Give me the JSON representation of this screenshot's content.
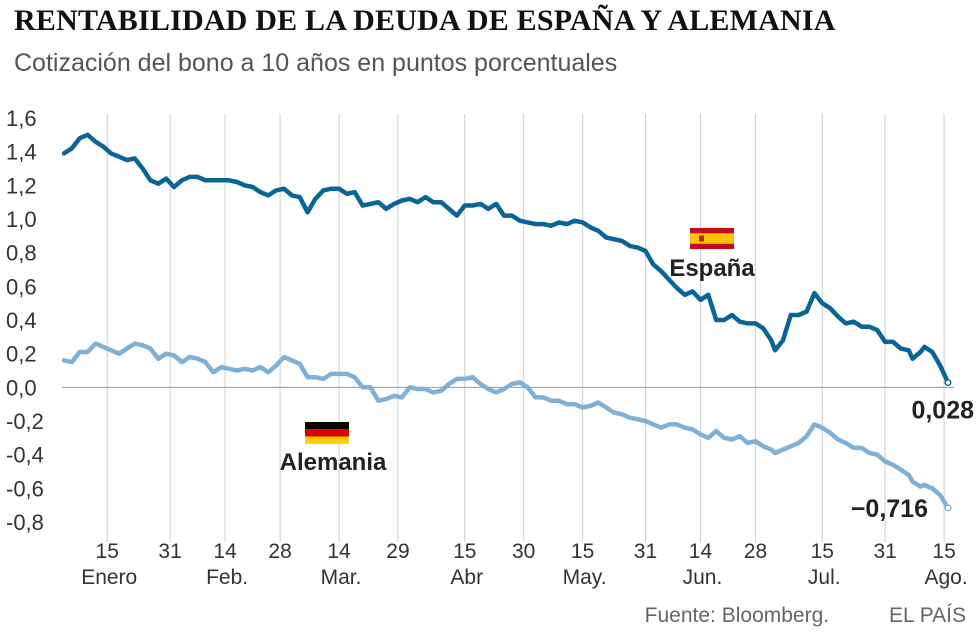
{
  "header": {
    "title": "RENTABILIDAD DE LA DEUDA DE ESPAÑA Y ALEMANIA",
    "subtitle": "Cotización del bono a 10 años en puntos porcentuales"
  },
  "footer": {
    "source": "Fuente: Bloomberg.",
    "publisher": "EL PAÍS"
  },
  "colors": {
    "spain": "#0a6496",
    "germany": "#7fb0d8",
    "grid": "#cfcfcf",
    "zero_line": "#999999",
    "text": "#333333"
  },
  "chart_data": {
    "type": "line",
    "title": "RENTABILIDAD DE LA DEUDA DE ESPAÑA Y ALEMANIA",
    "subtitle": "Cotización del bono a 10 años en puntos porcentuales",
    "ylim": [
      -0.8,
      1.6
    ],
    "yticks": [
      1.6,
      1.4,
      1.2,
      1.0,
      0.8,
      0.6,
      0.4,
      0.2,
      0.0,
      -0.2,
      -0.4,
      -0.6,
      -0.8
    ],
    "ytick_labels": [
      "1,6",
      "1,4",
      "1,2",
      "1,0",
      "0,8",
      "0,6",
      "0,4",
      "0,2",
      "0,0",
      "-0,2",
      "-0,4",
      "-0,6",
      "-0,8"
    ],
    "xlim": [
      "2016-01-04",
      "2016-08-16"
    ],
    "xticks": [
      {
        "date": "2016-01-15",
        "label": "15"
      },
      {
        "date": "2016-01-31",
        "label": "31"
      },
      {
        "date": "2016-02-14",
        "label": "14"
      },
      {
        "date": "2016-02-28",
        "label": "28"
      },
      {
        "date": "2016-03-14",
        "label": "14"
      },
      {
        "date": "2016-03-29",
        "label": "29"
      },
      {
        "date": "2016-04-15",
        "label": "15"
      },
      {
        "date": "2016-04-30",
        "label": "30"
      },
      {
        "date": "2016-05-15",
        "label": "15"
      },
      {
        "date": "2016-05-31",
        "label": "31"
      },
      {
        "date": "2016-06-14",
        "label": "14"
      },
      {
        "date": "2016-06-28",
        "label": "28"
      },
      {
        "date": "2016-07-15",
        "label": "15"
      },
      {
        "date": "2016-07-31",
        "label": "31"
      },
      {
        "date": "2016-08-15",
        "label": "15"
      }
    ],
    "months": [
      {
        "date": "2016-01-15",
        "label": "Enero"
      },
      {
        "date": "2016-02-14",
        "label": "Feb."
      },
      {
        "date": "2016-03-14",
        "label": "Mar."
      },
      {
        "date": "2016-04-15",
        "label": "Abr"
      },
      {
        "date": "2016-05-15",
        "label": "May."
      },
      {
        "date": "2016-06-14",
        "label": "Jun."
      },
      {
        "date": "2016-07-15",
        "label": "Jul."
      },
      {
        "date": "2016-08-15",
        "label": "Ago."
      }
    ],
    "grid": {
      "vertical": true,
      "horizontal": false
    },
    "series": [
      {
        "name": "España",
        "end_label": "0,028",
        "points": [
          [
            "2016-01-04",
            1.39
          ],
          [
            "2016-01-06",
            1.42
          ],
          [
            "2016-01-08",
            1.48
          ],
          [
            "2016-01-10",
            1.5
          ],
          [
            "2016-01-12",
            1.46
          ],
          [
            "2016-01-14",
            1.43
          ],
          [
            "2016-01-16",
            1.39
          ],
          [
            "2016-01-18",
            1.37
          ],
          [
            "2016-01-20",
            1.35
          ],
          [
            "2016-01-22",
            1.36
          ],
          [
            "2016-01-24",
            1.3
          ],
          [
            "2016-01-26",
            1.23
          ],
          [
            "2016-01-28",
            1.21
          ],
          [
            "2016-01-30",
            1.24
          ],
          [
            "2016-02-01",
            1.19
          ],
          [
            "2016-02-03",
            1.23
          ],
          [
            "2016-02-05",
            1.25
          ],
          [
            "2016-02-07",
            1.25
          ],
          [
            "2016-02-09",
            1.23
          ],
          [
            "2016-02-11",
            1.23
          ],
          [
            "2016-02-13",
            1.23
          ],
          [
            "2016-02-15",
            1.23
          ],
          [
            "2016-02-17",
            1.22
          ],
          [
            "2016-02-19",
            1.2
          ],
          [
            "2016-02-21",
            1.19
          ],
          [
            "2016-02-23",
            1.16
          ],
          [
            "2016-02-25",
            1.14
          ],
          [
            "2016-02-27",
            1.17
          ],
          [
            "2016-02-29",
            1.18
          ],
          [
            "2016-03-02",
            1.14
          ],
          [
            "2016-03-04",
            1.13
          ],
          [
            "2016-03-06",
            1.04
          ],
          [
            "2016-03-08",
            1.12
          ],
          [
            "2016-03-10",
            1.17
          ],
          [
            "2016-03-12",
            1.18
          ],
          [
            "2016-03-14",
            1.18
          ],
          [
            "2016-03-16",
            1.15
          ],
          [
            "2016-03-18",
            1.16
          ],
          [
            "2016-03-20",
            1.08
          ],
          [
            "2016-03-22",
            1.09
          ],
          [
            "2016-03-24",
            1.1
          ],
          [
            "2016-03-26",
            1.06
          ],
          [
            "2016-03-28",
            1.09
          ],
          [
            "2016-03-30",
            1.11
          ],
          [
            "2016-04-01",
            1.12
          ],
          [
            "2016-04-03",
            1.1
          ],
          [
            "2016-04-05",
            1.13
          ],
          [
            "2016-04-07",
            1.1
          ],
          [
            "2016-04-09",
            1.1
          ],
          [
            "2016-04-11",
            1.06
          ],
          [
            "2016-04-13",
            1.02
          ],
          [
            "2016-04-15",
            1.08
          ],
          [
            "2016-04-17",
            1.08
          ],
          [
            "2016-04-19",
            1.09
          ],
          [
            "2016-04-21",
            1.06
          ],
          [
            "2016-04-23",
            1.09
          ],
          [
            "2016-04-25",
            1.02
          ],
          [
            "2016-04-27",
            1.02
          ],
          [
            "2016-04-29",
            0.99
          ],
          [
            "2016-05-01",
            0.98
          ],
          [
            "2016-05-03",
            0.97
          ],
          [
            "2016-05-05",
            0.97
          ],
          [
            "2016-05-07",
            0.96
          ],
          [
            "2016-05-09",
            0.98
          ],
          [
            "2016-05-11",
            0.97
          ],
          [
            "2016-05-13",
            0.99
          ],
          [
            "2016-05-15",
            0.98
          ],
          [
            "2016-05-17",
            0.95
          ],
          [
            "2016-05-19",
            0.93
          ],
          [
            "2016-05-21",
            0.89
          ],
          [
            "2016-05-23",
            0.88
          ],
          [
            "2016-05-25",
            0.87
          ],
          [
            "2016-05-27",
            0.84
          ],
          [
            "2016-05-29",
            0.83
          ],
          [
            "2016-05-31",
            0.81
          ],
          [
            "2016-06-02",
            0.73
          ],
          [
            "2016-06-04",
            0.69
          ],
          [
            "2016-06-06",
            0.64
          ],
          [
            "2016-06-08",
            0.59
          ],
          [
            "2016-06-10",
            0.55
          ],
          [
            "2016-06-12",
            0.57
          ],
          [
            "2016-06-14",
            0.52
          ],
          [
            "2016-06-16",
            0.55
          ],
          [
            "2016-06-18",
            0.4
          ],
          [
            "2016-06-20",
            0.4
          ],
          [
            "2016-06-22",
            0.43
          ],
          [
            "2016-06-24",
            0.39
          ],
          [
            "2016-06-26",
            0.38
          ],
          [
            "2016-06-28",
            0.38
          ],
          [
            "2016-06-30",
            0.35
          ],
          [
            "2016-07-02",
            0.28
          ],
          [
            "2016-07-03",
            0.22
          ],
          [
            "2016-07-05",
            0.28
          ],
          [
            "2016-07-07",
            0.43
          ],
          [
            "2016-07-09",
            0.43
          ],
          [
            "2016-07-11",
            0.45
          ],
          [
            "2016-07-13",
            0.56
          ],
          [
            "2016-07-15",
            0.5
          ],
          [
            "2016-07-17",
            0.47
          ],
          [
            "2016-07-19",
            0.42
          ],
          [
            "2016-07-21",
            0.38
          ],
          [
            "2016-07-23",
            0.39
          ],
          [
            "2016-07-25",
            0.36
          ],
          [
            "2016-07-27",
            0.36
          ],
          [
            "2016-07-29",
            0.34
          ],
          [
            "2016-07-31",
            0.27
          ],
          [
            "2016-08-02",
            0.27
          ],
          [
            "2016-08-04",
            0.23
          ],
          [
            "2016-08-06",
            0.22
          ],
          [
            "2016-08-07",
            0.17
          ],
          [
            "2016-08-09",
            0.21
          ],
          [
            "2016-08-10",
            0.24
          ],
          [
            "2016-08-12",
            0.21
          ],
          [
            "2016-08-14",
            0.13
          ],
          [
            "2016-08-16",
            0.028
          ]
        ]
      },
      {
        "name": "Alemania",
        "end_label": "−0,716",
        "points": [
          [
            "2016-01-04",
            0.16
          ],
          [
            "2016-01-06",
            0.15
          ],
          [
            "2016-01-08",
            0.21
          ],
          [
            "2016-01-10",
            0.21
          ],
          [
            "2016-01-12",
            0.26
          ],
          [
            "2016-01-14",
            0.24
          ],
          [
            "2016-01-16",
            0.22
          ],
          [
            "2016-01-18",
            0.2
          ],
          [
            "2016-01-20",
            0.23
          ],
          [
            "2016-01-22",
            0.26
          ],
          [
            "2016-01-24",
            0.25
          ],
          [
            "2016-01-26",
            0.23
          ],
          [
            "2016-01-28",
            0.17
          ],
          [
            "2016-01-30",
            0.2
          ],
          [
            "2016-02-01",
            0.19
          ],
          [
            "2016-02-03",
            0.15
          ],
          [
            "2016-02-05",
            0.18
          ],
          [
            "2016-02-07",
            0.17
          ],
          [
            "2016-02-09",
            0.15
          ],
          [
            "2016-02-11",
            0.09
          ],
          [
            "2016-02-13",
            0.12
          ],
          [
            "2016-02-15",
            0.11
          ],
          [
            "2016-02-17",
            0.1
          ],
          [
            "2016-02-19",
            0.11
          ],
          [
            "2016-02-21",
            0.1
          ],
          [
            "2016-02-23",
            0.12
          ],
          [
            "2016-02-25",
            0.09
          ],
          [
            "2016-02-27",
            0.13
          ],
          [
            "2016-02-29",
            0.18
          ],
          [
            "2016-03-02",
            0.16
          ],
          [
            "2016-03-04",
            0.14
          ],
          [
            "2016-03-06",
            0.06
          ],
          [
            "2016-03-08",
            0.06
          ],
          [
            "2016-03-10",
            0.05
          ],
          [
            "2016-03-12",
            0.08
          ],
          [
            "2016-03-14",
            0.08
          ],
          [
            "2016-03-16",
            0.08
          ],
          [
            "2016-03-18",
            0.06
          ],
          [
            "2016-03-20",
            0.0
          ],
          [
            "2016-03-22",
            0.0
          ],
          [
            "2016-03-24",
            -0.08
          ],
          [
            "2016-03-26",
            -0.07
          ],
          [
            "2016-03-28",
            -0.05
          ],
          [
            "2016-03-30",
            -0.06
          ],
          [
            "2016-04-01",
            0.0
          ],
          [
            "2016-04-03",
            -0.01
          ],
          [
            "2016-04-05",
            -0.01
          ],
          [
            "2016-04-07",
            -0.03
          ],
          [
            "2016-04-09",
            -0.02
          ],
          [
            "2016-04-11",
            0.02
          ],
          [
            "2016-04-13",
            0.05
          ],
          [
            "2016-04-15",
            0.05
          ],
          [
            "2016-04-17",
            0.06
          ],
          [
            "2016-04-19",
            0.02
          ],
          [
            "2016-04-21",
            -0.01
          ],
          [
            "2016-04-23",
            -0.03
          ],
          [
            "2016-04-25",
            -0.01
          ],
          [
            "2016-04-27",
            0.02
          ],
          [
            "2016-04-29",
            0.03
          ],
          [
            "2016-05-01",
            0.0
          ],
          [
            "2016-05-03",
            -0.06
          ],
          [
            "2016-05-05",
            -0.06
          ],
          [
            "2016-05-07",
            -0.08
          ],
          [
            "2016-05-09",
            -0.08
          ],
          [
            "2016-05-11",
            -0.1
          ],
          [
            "2016-05-13",
            -0.1
          ],
          [
            "2016-05-15",
            -0.12
          ],
          [
            "2016-05-17",
            -0.11
          ],
          [
            "2016-05-19",
            -0.09
          ],
          [
            "2016-05-21",
            -0.12
          ],
          [
            "2016-05-23",
            -0.15
          ],
          [
            "2016-05-25",
            -0.16
          ],
          [
            "2016-05-27",
            -0.18
          ],
          [
            "2016-05-29",
            -0.19
          ],
          [
            "2016-05-31",
            -0.2
          ],
          [
            "2016-06-02",
            -0.22
          ],
          [
            "2016-06-04",
            -0.24
          ],
          [
            "2016-06-06",
            -0.22
          ],
          [
            "2016-06-08",
            -0.22
          ],
          [
            "2016-06-10",
            -0.24
          ],
          [
            "2016-06-12",
            -0.25
          ],
          [
            "2016-06-14",
            -0.28
          ],
          [
            "2016-06-16",
            -0.3
          ],
          [
            "2016-06-18",
            -0.26
          ],
          [
            "2016-06-20",
            -0.3
          ],
          [
            "2016-06-22",
            -0.31
          ],
          [
            "2016-06-24",
            -0.29
          ],
          [
            "2016-06-26",
            -0.33
          ],
          [
            "2016-06-28",
            -0.32
          ],
          [
            "2016-06-30",
            -0.35
          ],
          [
            "2016-07-02",
            -0.37
          ],
          [
            "2016-07-03",
            -0.39
          ],
          [
            "2016-07-05",
            -0.37
          ],
          [
            "2016-07-07",
            -0.35
          ],
          [
            "2016-07-09",
            -0.33
          ],
          [
            "2016-07-11",
            -0.29
          ],
          [
            "2016-07-13",
            -0.22
          ],
          [
            "2016-07-15",
            -0.24
          ],
          [
            "2016-07-17",
            -0.27
          ],
          [
            "2016-07-19",
            -0.31
          ],
          [
            "2016-07-21",
            -0.33
          ],
          [
            "2016-07-23",
            -0.36
          ],
          [
            "2016-07-25",
            -0.36
          ],
          [
            "2016-07-27",
            -0.39
          ],
          [
            "2016-07-29",
            -0.4
          ],
          [
            "2016-07-31",
            -0.44
          ],
          [
            "2016-08-02",
            -0.46
          ],
          [
            "2016-08-04",
            -0.49
          ],
          [
            "2016-08-06",
            -0.52
          ],
          [
            "2016-08-07",
            -0.56
          ],
          [
            "2016-08-09",
            -0.59
          ],
          [
            "2016-08-10",
            -0.58
          ],
          [
            "2016-08-12",
            -0.6
          ],
          [
            "2016-08-14",
            -0.64
          ],
          [
            "2016-08-16",
            -0.716
          ]
        ]
      }
    ]
  }
}
